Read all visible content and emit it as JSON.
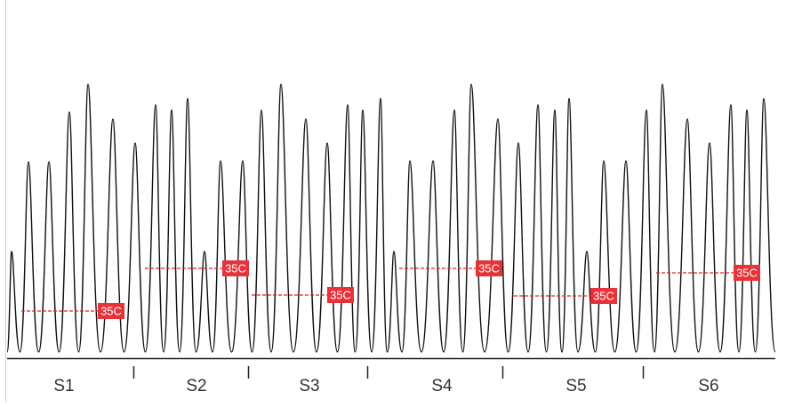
{
  "segments": [
    {
      "label": "S1",
      "marker": "35C"
    },
    {
      "label": "S2",
      "marker": "35C"
    },
    {
      "label": "S3",
      "marker": "35C"
    },
    {
      "label": "S4",
      "marker": "35C"
    },
    {
      "label": "S5",
      "marker": "35C"
    },
    {
      "label": "S6",
      "marker": "35C"
    }
  ]
}
